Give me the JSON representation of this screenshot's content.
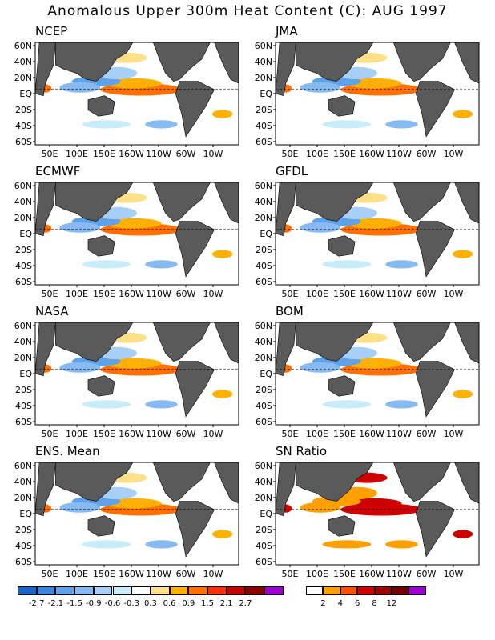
{
  "title": "Anomalous Upper 300m Heat Content (C): AUG 1997",
  "lat_labels": [
    "60N",
    "40N",
    "20N",
    "EQ",
    "20S",
    "40S",
    "60S"
  ],
  "lon_labels": [
    "50E",
    "100E",
    "150E",
    "160W",
    "110W",
    "60W",
    "10W"
  ],
  "panels": [
    {
      "name": "NCEP"
    },
    {
      "name": "JMA"
    },
    {
      "name": "ECMWF"
    },
    {
      "name": "GFDL"
    },
    {
      "name": "NASA"
    },
    {
      "name": "BOM"
    },
    {
      "name": "ENS. Mean"
    },
    {
      "name": "SN Ratio"
    }
  ],
  "legend_anomaly": {
    "ticks": [
      "-2.7",
      "-2.1",
      "-1.5",
      "-0.9",
      "-0.6",
      "-0.3",
      "0.3",
      "0.6",
      "0.9",
      "1.5",
      "2.1",
      "2.7"
    ],
    "colors": [
      "#1565c8",
      "#3a86dc",
      "#5fa2e8",
      "#86baf0",
      "#a8d0f6",
      "#c9ecfa",
      "#ffffff",
      "#ffe08a",
      "#ffb000",
      "#ff7000",
      "#ff3000",
      "#c80000",
      "#8c0000",
      "#9b00d0"
    ]
  },
  "legend_sn": {
    "ticks": [
      "2",
      "4",
      "6",
      "8",
      "12"
    ],
    "colors": [
      "#ffffff",
      "#ffa000",
      "#ff5000",
      "#d00000",
      "#a00000",
      "#700000",
      "#9b00d0"
    ]
  },
  "land_color": "#5a5a5a",
  "ocean_color": "#ffffff"
}
